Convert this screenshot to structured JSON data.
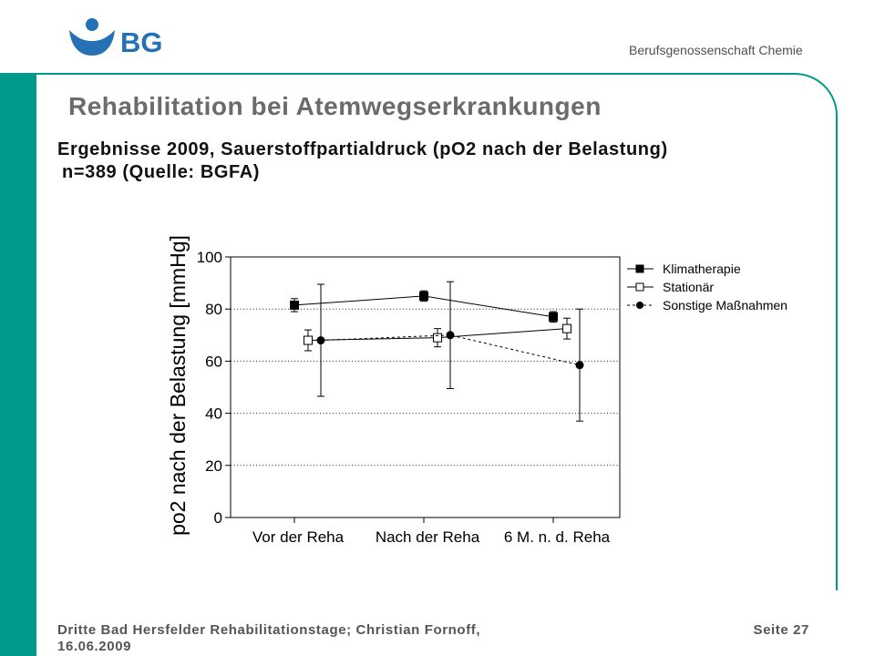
{
  "header": {
    "logo_text": "BG",
    "org_name": "Berufsgenossenschaft Chemie"
  },
  "slide": {
    "title": "Rehabilitation bei Atemwegserkrankungen",
    "subtitle_line1": "Ergebnisse 2009, Sauerstoffpartialdruck (pO2 nach der Belastung)",
    "subtitle_line2": "n=389 (Quelle: BGFA)"
  },
  "chart_data": {
    "type": "line",
    "ylabel": "po2 nach der Belastung [mmHg]",
    "categories": [
      "Vor der Reha",
      "Nach der Reha",
      "6 M. n. d. Reha"
    ],
    "ylim": [
      0,
      100
    ],
    "yticks": [
      0,
      20,
      40,
      60,
      80,
      100
    ],
    "grid": true,
    "legend_position": "right",
    "series": [
      {
        "name": "Klimatherapie",
        "marker": "filled-square",
        "line_style": "solid",
        "values": [
          81.5,
          85,
          77
        ],
        "error": [
          2.5,
          2,
          2
        ]
      },
      {
        "name": "Stationär",
        "marker": "open-square",
        "line_style": "solid",
        "values": [
          68,
          69,
          72.5
        ],
        "error": [
          4,
          3.5,
          4
        ]
      },
      {
        "name": "Sonstige Maßnahmen",
        "marker": "filled-circle",
        "line_style": "dashed",
        "values": [
          68,
          70,
          58.5
        ],
        "error": [
          21.5,
          20.5,
          21.5
        ]
      }
    ]
  },
  "footer": {
    "event_line1": "Dritte Bad Hersfelder Rehabilitationstage; Christian Fornoff,",
    "event_line2": "16.06.2009",
    "page": "Seite 27"
  },
  "colors": {
    "accent": "#009a8c",
    "logo": "#2471b5",
    "title": "#6b6b6b",
    "text": "#111111",
    "footer": "#555555"
  }
}
